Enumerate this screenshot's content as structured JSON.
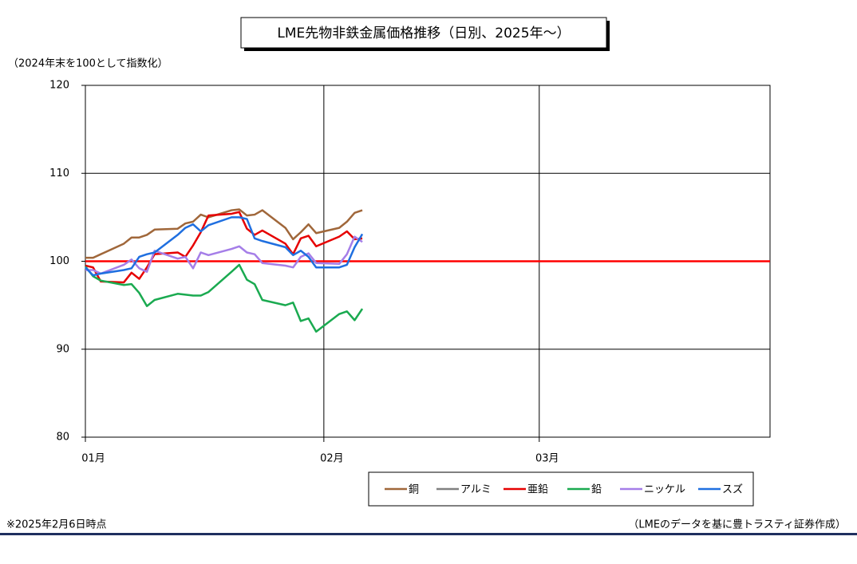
{
  "chart_data": {
    "type": "line",
    "title": "LME先物非鉄金属価格推移（日別、2025年～）",
    "y_label": "（2024年末を100として指数化）",
    "footnote": "※2025年2月6日時点",
    "source": "（LMEのデータを基に豊トラスティ証券作成）",
    "x": [
      0,
      1,
      2,
      5,
      6,
      7,
      8,
      9,
      12,
      13,
      14,
      15,
      16,
      19,
      20,
      21,
      22,
      23,
      26,
      27,
      28,
      29,
      30,
      33,
      34,
      35,
      36
    ],
    "xlim": [
      0,
      89
    ],
    "xticks": [
      {
        "value": 0,
        "label": "01月"
      },
      {
        "value": 31,
        "label": "02月"
      },
      {
        "value": 59,
        "label": "03月"
      }
    ],
    "ylim": [
      80,
      120
    ],
    "yticks": [
      80,
      90,
      100,
      110,
      120
    ],
    "grid": true,
    "reference_line": {
      "value": 100,
      "color": "#ff0000"
    },
    "legend": "bottom",
    "series": [
      {
        "name": "銅",
        "color": "#a0673a",
        "values": [
          100.4,
          100.4,
          100.8,
          102.0,
          102.7,
          102.7,
          103.0,
          103.6,
          103.7,
          104.3,
          104.5,
          105.3,
          105.0,
          105.8,
          105.9,
          105.2,
          105.3,
          105.8,
          103.8,
          102.5,
          103.3,
          104.2,
          103.2,
          103.8,
          104.5,
          105.5,
          105.8
        ]
      },
      {
        "name": "アルミ",
        "color": "#808080",
        "values": [
          null,
          null,
          null,
          null,
          null,
          null,
          null,
          null,
          null,
          null,
          null,
          null,
          null,
          null,
          null,
          null,
          null,
          null,
          null,
          null,
          null,
          null,
          null,
          null,
          null,
          null,
          null
        ]
      },
      {
        "name": "亜鉛",
        "color": "#e60000",
        "values": [
          99.5,
          99.3,
          97.7,
          97.6,
          98.7,
          98.0,
          99.3,
          100.8,
          101.0,
          100.5,
          101.8,
          103.3,
          105.2,
          105.4,
          105.6,
          103.7,
          103.0,
          103.5,
          102.0,
          100.8,
          102.6,
          102.9,
          101.7,
          102.8,
          103.4,
          102.5,
          102.6
        ]
      },
      {
        "name": "鉛",
        "color": "#1aaa50",
        "values": [
          99.4,
          98.3,
          97.8,
          97.3,
          97.4,
          96.4,
          94.9,
          95.6,
          96.3,
          96.2,
          96.1,
          96.1,
          96.5,
          98.8,
          99.6,
          97.9,
          97.4,
          95.6,
          95.0,
          95.3,
          93.2,
          93.5,
          92.0,
          94.0,
          94.3,
          93.3,
          94.6
        ]
      },
      {
        "name": "ニッケル",
        "color": "#a57ee8",
        "values": [
          99.0,
          99.0,
          98.6,
          99.6,
          100.2,
          99.2,
          98.8,
          101.2,
          100.3,
          100.5,
          99.2,
          101.0,
          100.7,
          101.4,
          101.7,
          101.0,
          100.8,
          99.8,
          99.5,
          99.3,
          100.5,
          100.9,
          99.8,
          99.7,
          100.8,
          102.8,
          102.2
        ]
      },
      {
        "name": "スズ",
        "color": "#1f6fe0",
        "values": [
          99.3,
          98.4,
          98.6,
          99.0,
          99.2,
          100.5,
          100.8,
          101.0,
          103.0,
          103.8,
          104.2,
          103.4,
          104.1,
          105.0,
          105.0,
          104.8,
          102.6,
          102.3,
          101.6,
          100.7,
          101.2,
          100.5,
          99.3,
          99.3,
          99.6,
          101.6,
          103.1
        ]
      }
    ]
  }
}
